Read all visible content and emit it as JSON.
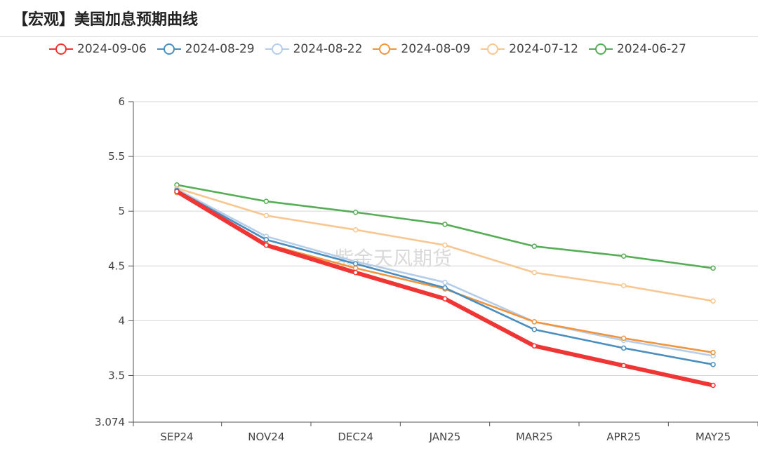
{
  "header": {
    "title": "【宏观】美国加息预期曲线"
  },
  "watermark": "紫金天风期货",
  "chart_data": {
    "type": "line",
    "categories": [
      "SEP24",
      "NOV24",
      "DEC24",
      "JAN25",
      "MAR25",
      "APR25",
      "MAY25"
    ],
    "ylim": [
      3.074,
      6
    ],
    "yticks": [
      "3.074",
      "3.5",
      "4",
      "4.5",
      "5",
      "5.5",
      "6"
    ],
    "yticks_values": [
      3.074,
      3.5,
      4,
      4.5,
      5,
      5.5,
      6
    ],
    "grid": true,
    "legend": "top",
    "series": [
      {
        "name": "2024-06-27",
        "color": "#55ad55",
        "values": [
          5.24,
          5.09,
          4.99,
          4.88,
          4.68,
          4.59,
          4.48
        ]
      },
      {
        "name": "2024-07-12",
        "color": "#f8c690",
        "values": [
          5.21,
          4.96,
          4.83,
          4.69,
          4.44,
          4.32,
          4.18
        ]
      },
      {
        "name": "2024-08-22",
        "color": "#b5cde8",
        "values": [
          5.2,
          4.77,
          4.54,
          4.35,
          3.99,
          3.82,
          3.68
        ]
      },
      {
        "name": "2024-08-09",
        "color": "#f0953d",
        "values": [
          5.17,
          4.7,
          4.48,
          4.29,
          3.99,
          3.84,
          3.71
        ]
      },
      {
        "name": "2024-08-29",
        "color": "#4a8ec0",
        "values": [
          5.19,
          4.74,
          4.52,
          4.3,
          3.92,
          3.75,
          3.6
        ]
      },
      {
        "name": "2024-09-06",
        "color": "#f03535",
        "values": [
          5.18,
          4.69,
          4.44,
          4.2,
          3.77,
          3.59,
          3.41
        ]
      }
    ],
    "legend_order": [
      "2024-09-06",
      "2024-08-29",
      "2024-08-22",
      "2024-08-09",
      "2024-07-12",
      "2024-06-27"
    ]
  }
}
